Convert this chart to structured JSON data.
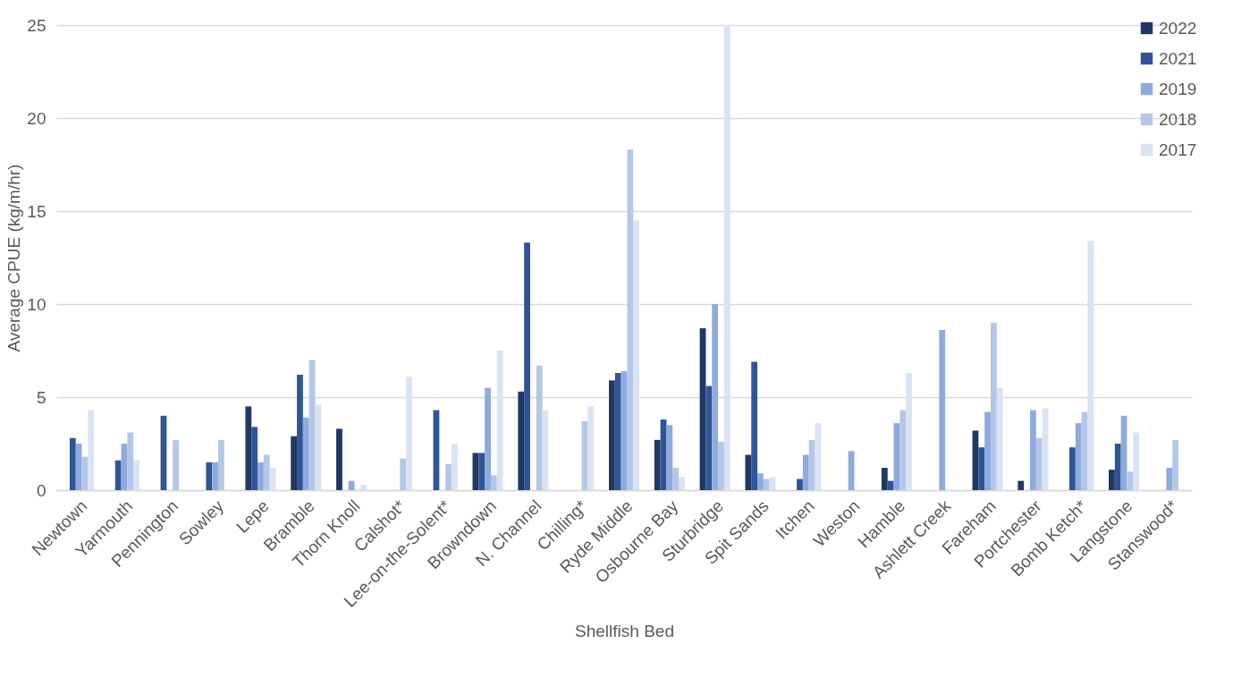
{
  "chart_data": {
    "type": "bar",
    "xlabel": "Shellfish Bed",
    "ylabel": "Average CPUE (kg/m/hr)",
    "categories": [
      "Newtown",
      "Yarmouth",
      "Pennington",
      "Sowley",
      "Lepe",
      "Bramble",
      "Thorn Knoll",
      "Calshot*",
      "Lee-on-the-Solent*",
      "Browndown",
      "N. Channel",
      "Chilling*",
      "Ryde Middle",
      "Osbourne Bay",
      "Sturbridge",
      "Spit Sands",
      "Itchen",
      "Weston",
      "Hamble",
      "Ashlett Creek",
      "Fareham",
      "Portchester",
      "Bomb Ketch*",
      "Langstone",
      "Stanswood*"
    ],
    "series": [
      {
        "name": "2022",
        "color": "#203864",
        "values": [
          null,
          null,
          null,
          null,
          4.5,
          2.9,
          3.3,
          null,
          null,
          2.0,
          5.3,
          null,
          5.9,
          2.7,
          8.7,
          1.9,
          null,
          null,
          1.2,
          null,
          3.2,
          0.5,
          null,
          1.1,
          null
        ]
      },
      {
        "name": "2021",
        "color": "#2f5597",
        "values": [
          2.8,
          1.6,
          4.0,
          1.5,
          3.4,
          6.2,
          null,
          null,
          4.3,
          2.0,
          13.3,
          null,
          6.3,
          3.8,
          5.6,
          6.9,
          0.6,
          null,
          0.5,
          null,
          2.3,
          null,
          2.3,
          2.5,
          null
        ]
      },
      {
        "name": "2019",
        "color": "#8faadc",
        "values": [
          2.5,
          2.5,
          null,
          1.5,
          1.5,
          3.9,
          0.5,
          null,
          null,
          5.5,
          null,
          null,
          6.4,
          3.5,
          10.0,
          0.9,
          1.9,
          2.1,
          3.6,
          8.6,
          4.2,
          4.3,
          3.6,
          4.0,
          1.2
        ]
      },
      {
        "name": "2018",
        "color": "#b4c7e7",
        "values": [
          1.8,
          3.1,
          2.7,
          2.7,
          1.9,
          7.0,
          null,
          1.7,
          1.4,
          0.8,
          6.7,
          3.7,
          18.3,
          1.2,
          2.6,
          0.6,
          2.7,
          null,
          4.3,
          null,
          9.0,
          2.8,
          4.2,
          1.0,
          2.7
        ]
      },
      {
        "name": "2017",
        "color": "#dae3f3",
        "values": [
          4.3,
          1.6,
          null,
          null,
          1.2,
          4.6,
          0.3,
          6.1,
          2.5,
          7.5,
          4.3,
          4.5,
          14.5,
          0.7,
          25,
          0.7,
          3.6,
          null,
          6.3,
          null,
          5.5,
          4.4,
          13.4,
          3.1,
          null
        ]
      }
    ],
    "ylim": [
      0,
      25
    ],
    "yticks": [
      0,
      5,
      10,
      15,
      20,
      25
    ],
    "grid": "y",
    "legend": "top right"
  }
}
